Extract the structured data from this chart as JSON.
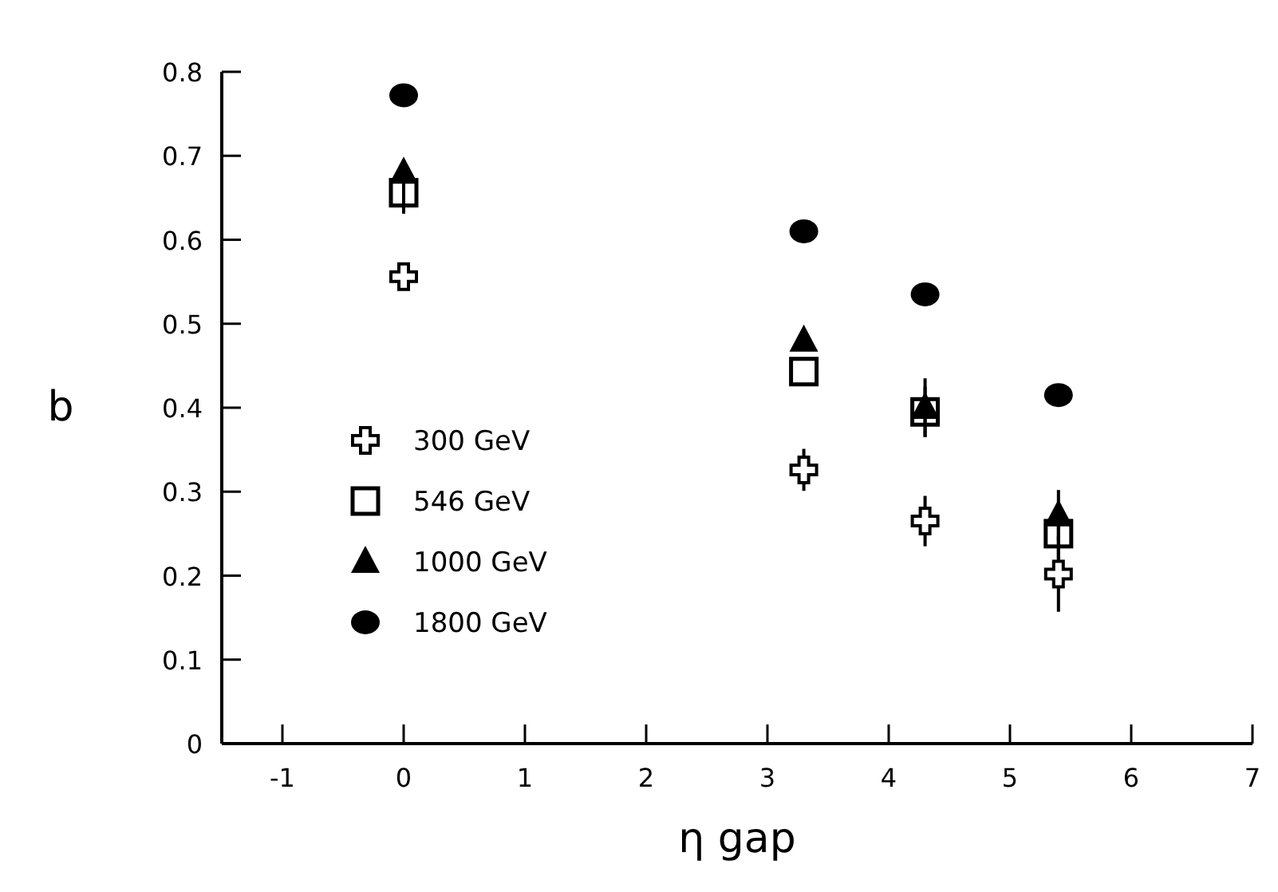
{
  "chart_data": {
    "type": "scatter",
    "xlabel": "η gap",
    "ylabel": "b",
    "xlim": [
      -1.5,
      7
    ],
    "ylim": [
      0,
      0.8
    ],
    "xticks": [
      -1,
      0,
      1,
      2,
      3,
      4,
      5,
      6,
      7
    ],
    "yticks": [
      0,
      0.1,
      0.2,
      0.3,
      0.4,
      0.5,
      0.6,
      0.7,
      0.8
    ],
    "grid": false,
    "legend": "bottom left",
    "x": [
      0,
      3.3,
      4.3,
      5.4
    ],
    "series": [
      {
        "name": "300 GeV",
        "color": "#000000",
        "marker": "cross",
        "values": [
          0.556,
          0.326,
          0.265,
          0.202
        ],
        "errors": [
          0.015,
          0.025,
          0.03,
          0.045
        ]
      },
      {
        "name": "546 GeV",
        "color": "#000000",
        "marker": "square",
        "values": [
          0.656,
          0.443,
          0.395,
          0.25
        ],
        "errors": [
          0.025,
          null,
          0.03,
          0.03
        ]
      },
      {
        "name": "1000 GeV",
        "color": "#000000",
        "marker": "triangle",
        "values": [
          0.68,
          0.48,
          0.4,
          0.272
        ],
        "errors": [
          null,
          null,
          0.035,
          0.03
        ]
      },
      {
        "name": "1800 GeV",
        "color": "#000000",
        "marker": "circle",
        "values": [
          0.772,
          0.61,
          0.535,
          0.415
        ]
      }
    ]
  }
}
